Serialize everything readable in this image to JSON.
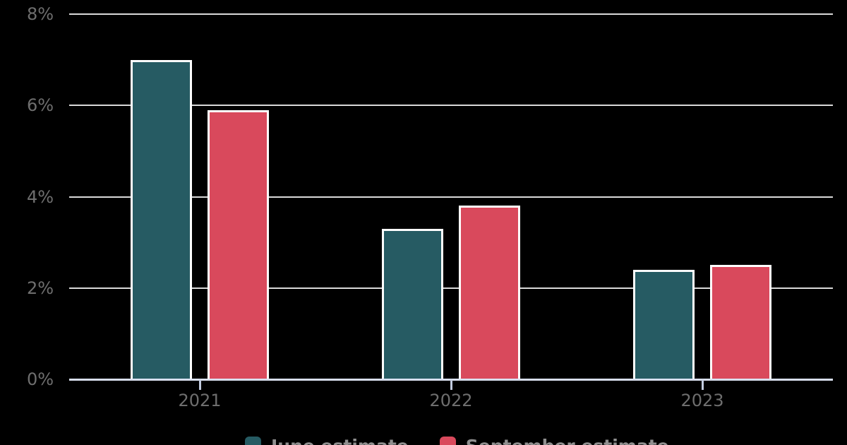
{
  "chart_data": {
    "type": "bar",
    "title": "",
    "categories": [
      "2021",
      "2022",
      "2023"
    ],
    "series": [
      {
        "name": "June estimate",
        "color": "#265B63",
        "values": [
          7.0,
          3.3,
          2.4
        ]
      },
      {
        "name": "September estimate",
        "color": "#D9495C",
        "values": [
          5.9,
          3.8,
          2.5
        ]
      }
    ],
    "ylim": [
      0,
      8
    ],
    "yticks": [
      {
        "value": 0,
        "label": "0%"
      },
      {
        "value": 2,
        "label": "2%"
      },
      {
        "value": 4,
        "label": "4%"
      },
      {
        "value": 6,
        "label": "6%"
      },
      {
        "value": 8,
        "label": "8%"
      }
    ],
    "grid": true,
    "legend_position": "bottom",
    "colors": {
      "background": "#000000",
      "bar_border": "#FFFFFF",
      "gridline": "#D9D9D9",
      "axis_line": "#D7DEEE",
      "tick_mark": "#C3CCDF",
      "axis_label": "#6E6E6E",
      "legend_text": "#8F8F8F"
    }
  }
}
